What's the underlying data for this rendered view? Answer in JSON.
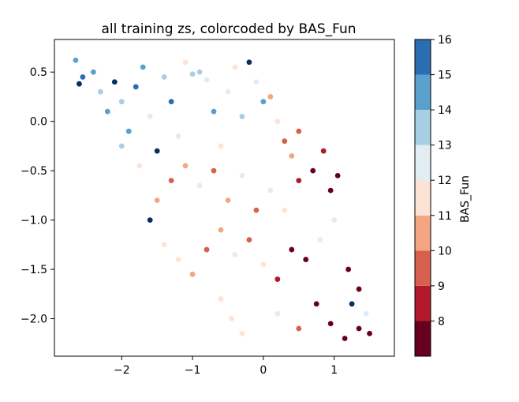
{
  "chart_data": {
    "type": "scatter",
    "title": "all training zs, colorcoded by BAS_Fun",
    "xlabel": "",
    "ylabel": "",
    "xlim": [
      -2.95,
      1.85
    ],
    "ylim": [
      -2.38,
      0.83
    ],
    "x_ticks": [
      -2,
      -1,
      0,
      1
    ],
    "x_tick_labels": [
      "−2",
      "−1",
      "0",
      "1"
    ],
    "y_ticks": [
      0.5,
      0.0,
      -0.5,
      -1.0,
      -1.5,
      -2.0
    ],
    "y_tick_labels": [
      "0.5",
      "0.0",
      "−0.5",
      "−1.0",
      "−1.5",
      "−2.0"
    ],
    "grid": false,
    "colorbar": {
      "label": "BAS_Fun",
      "range": [
        7,
        16
      ],
      "ticks": [
        8,
        9,
        10,
        11,
        12,
        13,
        14,
        15,
        16
      ],
      "tick_labels": [
        "8",
        "9",
        "10",
        "11",
        "12",
        "13",
        "14",
        "15",
        "16"
      ],
      "bins": [
        {
          "from": 7,
          "to": 8,
          "color": "#67001f"
        },
        {
          "from": 8,
          "to": 9,
          "color": "#b2182b"
        },
        {
          "from": 9,
          "to": 10,
          "color": "#d6604d"
        },
        {
          "from": 10,
          "to": 11,
          "color": "#f4a582"
        },
        {
          "from": 11,
          "to": 12,
          "color": "#fbe3d6"
        },
        {
          "from": 12,
          "to": 13,
          "color": "#e1ecf3"
        },
        {
          "from": 13,
          "to": 14,
          "color": "#a7cfe4"
        },
        {
          "from": 14,
          "to": 15,
          "color": "#5aa0cd"
        },
        {
          "from": 15,
          "to": 16,
          "color": "#2a6db1"
        },
        {
          "from": 16,
          "to": 17,
          "color": "#053061"
        }
      ]
    },
    "series": [
      {
        "values": [
          {
            "x": -2.65,
            "y": 0.62,
            "c": 14
          },
          {
            "x": -2.55,
            "y": 0.45,
            "c": 15
          },
          {
            "x": -2.6,
            "y": 0.38,
            "c": 16
          },
          {
            "x": -2.4,
            "y": 0.5,
            "c": 14
          },
          {
            "x": -2.3,
            "y": 0.3,
            "c": 13
          },
          {
            "x": -2.2,
            "y": 0.1,
            "c": 14
          },
          {
            "x": -2.1,
            "y": 0.4,
            "c": 16
          },
          {
            "x": -2.0,
            "y": 0.2,
            "c": 13
          },
          {
            "x": -1.9,
            "y": -0.1,
            "c": 14
          },
          {
            "x": -1.8,
            "y": 0.35,
            "c": 15
          },
          {
            "x": -1.7,
            "y": 0.55,
            "c": 14
          },
          {
            "x": -1.6,
            "y": 0.05,
            "c": 12
          },
          {
            "x": -1.5,
            "y": -0.3,
            "c": 16
          },
          {
            "x": -1.4,
            "y": 0.45,
            "c": 13
          },
          {
            "x": -1.3,
            "y": 0.2,
            "c": 15
          },
          {
            "x": -1.2,
            "y": -0.15,
            "c": 12
          },
          {
            "x": -1.1,
            "y": 0.6,
            "c": 11
          },
          {
            "x": -1.0,
            "y": 0.48,
            "c": 13
          },
          {
            "x": -0.9,
            "y": 0.5,
            "c": 13
          },
          {
            "x": -0.8,
            "y": 0.42,
            "c": 12
          },
          {
            "x": -0.7,
            "y": 0.1,
            "c": 14
          },
          {
            "x": -0.6,
            "y": -0.25,
            "c": 11
          },
          {
            "x": -0.5,
            "y": 0.3,
            "c": 12
          },
          {
            "x": -0.4,
            "y": 0.55,
            "c": 11
          },
          {
            "x": -0.3,
            "y": 0.05,
            "c": 13
          },
          {
            "x": -0.2,
            "y": 0.6,
            "c": 16
          },
          {
            "x": -0.1,
            "y": 0.4,
            "c": 12
          },
          {
            "x": 0.0,
            "y": 0.2,
            "c": 14
          },
          {
            "x": 0.1,
            "y": 0.25,
            "c": 10
          },
          {
            "x": 0.2,
            "y": 0.0,
            "c": 11
          },
          {
            "x": 0.3,
            "y": -0.2,
            "c": 9
          },
          {
            "x": 0.4,
            "y": -0.35,
            "c": 10
          },
          {
            "x": 0.5,
            "y": -0.1,
            "c": 9
          },
          {
            "x": -2.0,
            "y": -0.25,
            "c": 13
          },
          {
            "x": -1.75,
            "y": -0.45,
            "c": 11
          },
          {
            "x": -1.5,
            "y": -0.8,
            "c": 10
          },
          {
            "x": -1.6,
            "y": -1.0,
            "c": 16
          },
          {
            "x": -1.3,
            "y": -0.6,
            "c": 9
          },
          {
            "x": -1.1,
            "y": -0.45,
            "c": 10
          },
          {
            "x": -0.9,
            "y": -0.65,
            "c": 12
          },
          {
            "x": -0.7,
            "y": -0.5,
            "c": 9
          },
          {
            "x": -0.5,
            "y": -0.8,
            "c": 10
          },
          {
            "x": -0.3,
            "y": -0.55,
            "c": 12
          },
          {
            "x": -0.1,
            "y": -0.9,
            "c": 9
          },
          {
            "x": 0.1,
            "y": -0.7,
            "c": 12
          },
          {
            "x": 0.3,
            "y": -0.9,
            "c": 11
          },
          {
            "x": 0.5,
            "y": -0.6,
            "c": 8
          },
          {
            "x": 0.7,
            "y": -0.5,
            "c": 7
          },
          {
            "x": 0.85,
            "y": -0.3,
            "c": 8
          },
          {
            "x": 0.95,
            "y": -0.7,
            "c": 7
          },
          {
            "x": 1.05,
            "y": -0.55,
            "c": 7
          },
          {
            "x": -1.4,
            "y": -1.25,
            "c": 11
          },
          {
            "x": -1.2,
            "y": -1.4,
            "c": 11
          },
          {
            "x": -1.0,
            "y": -1.55,
            "c": 10
          },
          {
            "x": -0.8,
            "y": -1.3,
            "c": 9
          },
          {
            "x": -0.6,
            "y": -1.1,
            "c": 10
          },
          {
            "x": -0.4,
            "y": -1.35,
            "c": 12
          },
          {
            "x": -0.2,
            "y": -1.2,
            "c": 9
          },
          {
            "x": 0.0,
            "y": -1.45,
            "c": 11
          },
          {
            "x": 0.2,
            "y": -1.6,
            "c": 8
          },
          {
            "x": 0.4,
            "y": -1.3,
            "c": 7
          },
          {
            "x": 0.6,
            "y": -1.4,
            "c": 7
          },
          {
            "x": 0.8,
            "y": -1.2,
            "c": 12
          },
          {
            "x": 1.0,
            "y": -1.0,
            "c": 12
          },
          {
            "x": 1.2,
            "y": -1.5,
            "c": 7
          },
          {
            "x": 1.35,
            "y": -1.7,
            "c": 7
          },
          {
            "x": -0.6,
            "y": -1.8,
            "c": 11
          },
          {
            "x": -0.45,
            "y": -2.0,
            "c": 11
          },
          {
            "x": -0.3,
            "y": -2.15,
            "c": 11
          },
          {
            "x": 0.2,
            "y": -1.95,
            "c": 12
          },
          {
            "x": 0.5,
            "y": -2.1,
            "c": 9
          },
          {
            "x": 0.75,
            "y": -1.85,
            "c": 7
          },
          {
            "x": 0.95,
            "y": -2.05,
            "c": 7
          },
          {
            "x": 1.15,
            "y": -2.2,
            "c": 7
          },
          {
            "x": 1.35,
            "y": -2.1,
            "c": 7
          },
          {
            "x": 1.5,
            "y": -2.15,
            "c": 7
          },
          {
            "x": 1.45,
            "y": -1.95,
            "c": 12
          },
          {
            "x": 1.25,
            "y": -1.85,
            "c": 16
          }
        ]
      }
    ]
  }
}
